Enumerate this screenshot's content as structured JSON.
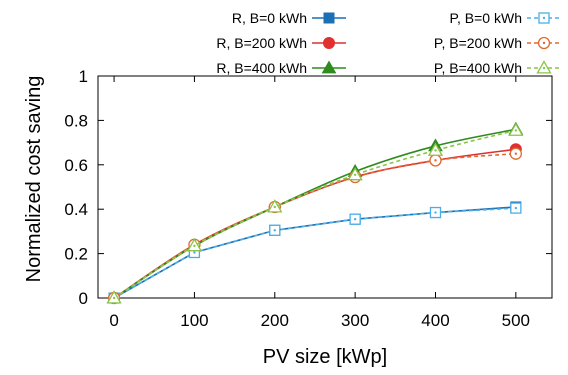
{
  "chart_data": {
    "type": "line",
    "title": "",
    "xlabel": "PV size [kWp]",
    "ylabel": "Normalized cost saving",
    "xlim": [
      -20,
      545
    ],
    "ylim": [
      0,
      1
    ],
    "xticks": [
      0,
      100,
      200,
      300,
      400,
      500
    ],
    "yticks": [
      0,
      0.2,
      0.4,
      0.6,
      0.8,
      1
    ],
    "x": [
      0,
      100,
      200,
      300,
      400,
      500
    ],
    "grid": false,
    "legend_position": "top",
    "series": [
      {
        "name": "R, B=0 kWh",
        "values": [
          0,
          0.205,
          0.305,
          0.355,
          0.385,
          0.41
        ],
        "color": "#1a6fb5",
        "marker": "square",
        "filled": true,
        "dash": false,
        "smooth": false
      },
      {
        "name": "R, B=200 kWh",
        "values": [
          0,
          0.24,
          0.41,
          0.545,
          0.62,
          0.67
        ],
        "color": "#e03030",
        "marker": "circle",
        "filled": true,
        "dash": false,
        "smooth": true
      },
      {
        "name": "R, B=400 kWh",
        "values": [
          0,
          0.235,
          0.41,
          0.57,
          0.685,
          0.76
        ],
        "color": "#2e8b1e",
        "marker": "triangle",
        "filled": true,
        "dash": false,
        "smooth": true
      },
      {
        "name": "P, B=0 kWh",
        "values": [
          0,
          0.205,
          0.305,
          0.355,
          0.385,
          0.405
        ],
        "color": "#4aaee8",
        "marker": "square",
        "filled": false,
        "dash": true,
        "smooth": false
      },
      {
        "name": "P, B=200 kWh",
        "values": [
          0,
          0.24,
          0.41,
          0.545,
          0.62,
          0.65
        ],
        "color": "#e06a30",
        "marker": "circle",
        "filled": false,
        "dash": true,
        "smooth": true
      },
      {
        "name": "P, B=400 kWh",
        "values": [
          0,
          0.235,
          0.41,
          0.555,
          0.665,
          0.755
        ],
        "color": "#8bc34a",
        "marker": "triangle",
        "filled": false,
        "dash": true,
        "smooth": true
      }
    ]
  }
}
